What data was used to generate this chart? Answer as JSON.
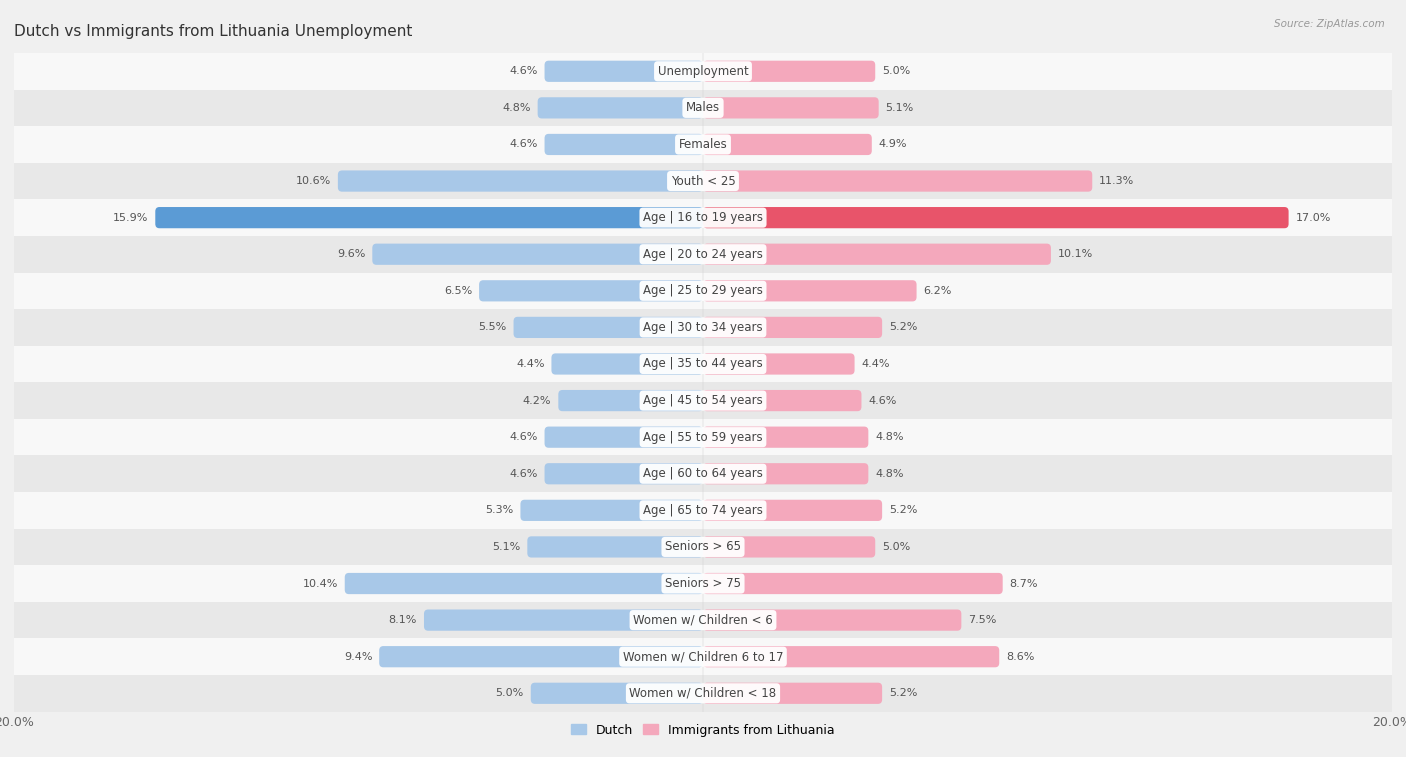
{
  "title": "Dutch vs Immigrants from Lithuania Unemployment",
  "source": "Source: ZipAtlas.com",
  "categories": [
    "Unemployment",
    "Males",
    "Females",
    "Youth < 25",
    "Age | 16 to 19 years",
    "Age | 20 to 24 years",
    "Age | 25 to 29 years",
    "Age | 30 to 34 years",
    "Age | 35 to 44 years",
    "Age | 45 to 54 years",
    "Age | 55 to 59 years",
    "Age | 60 to 64 years",
    "Age | 65 to 74 years",
    "Seniors > 65",
    "Seniors > 75",
    "Women w/ Children < 6",
    "Women w/ Children 6 to 17",
    "Women w/ Children < 18"
  ],
  "dutch_values": [
    4.6,
    4.8,
    4.6,
    10.6,
    15.9,
    9.6,
    6.5,
    5.5,
    4.4,
    4.2,
    4.6,
    4.6,
    5.3,
    5.1,
    10.4,
    8.1,
    9.4,
    5.0
  ],
  "immigrant_values": [
    5.0,
    5.1,
    4.9,
    11.3,
    17.0,
    10.1,
    6.2,
    5.2,
    4.4,
    4.6,
    4.8,
    4.8,
    5.2,
    5.0,
    8.7,
    7.5,
    8.6,
    5.2
  ],
  "dutch_color": "#a8c8e8",
  "immigrant_color": "#f4a8bc",
  "highlight_dutch_color": "#5b9bd5",
  "highlight_immigrant_color": "#e8546a",
  "bar_height": 0.58,
  "background_color": "#f0f0f0",
  "row_color_odd": "#f8f8f8",
  "row_color_even": "#e8e8e8",
  "max_value": 20.0,
  "legend_dutch": "Dutch",
  "legend_immigrant": "Immigrants from Lithuania",
  "title_fontsize": 11,
  "label_fontsize": 8.5,
  "value_fontsize": 8.0,
  "highlight_indices": [
    4
  ]
}
